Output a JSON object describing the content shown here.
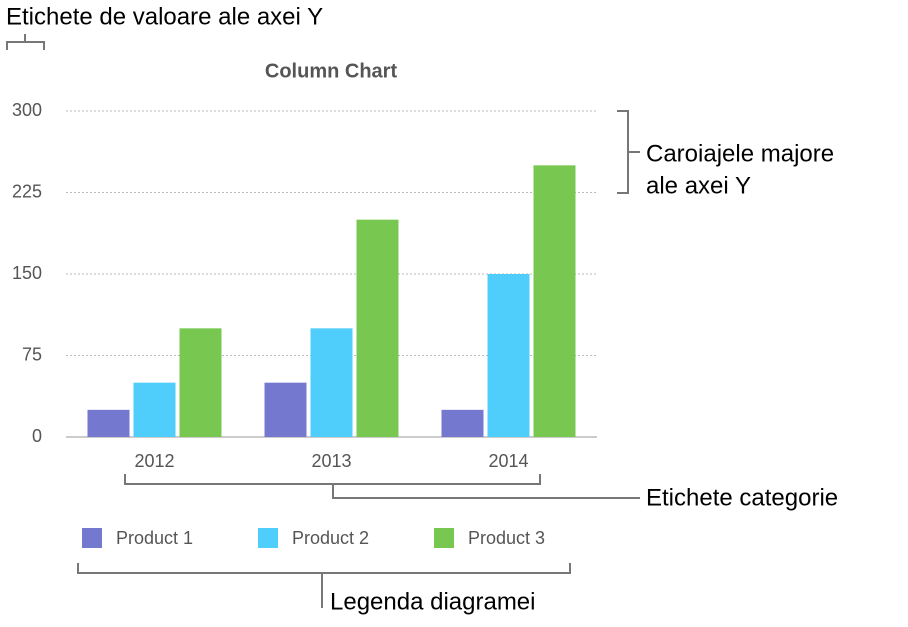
{
  "chart_data": {
    "type": "bar",
    "title": "Column Chart",
    "categories": [
      "2012",
      "2013",
      "2014"
    ],
    "series": [
      {
        "name": "Product 1",
        "color": "#7479cf",
        "values": [
          25,
          50,
          25
        ]
      },
      {
        "name": "Product 2",
        "color": "#50cefb",
        "values": [
          50,
          100,
          150
        ]
      },
      {
        "name": "Product 3",
        "color": "#78c750",
        "values": [
          100,
          200,
          250
        ]
      }
    ],
    "ylim": [
      0,
      300
    ],
    "yticks": [
      0,
      75,
      150,
      225,
      300
    ],
    "grid": true,
    "legend": "bottom",
    "annotations": {
      "y_axis_labels": "Etichete de valoare ale axei Y",
      "gridlines": [
        "Caroiajele majore",
        "ale axei Y"
      ],
      "category_labels": "Etichete categorie",
      "legend": "Legenda diagramei"
    }
  }
}
